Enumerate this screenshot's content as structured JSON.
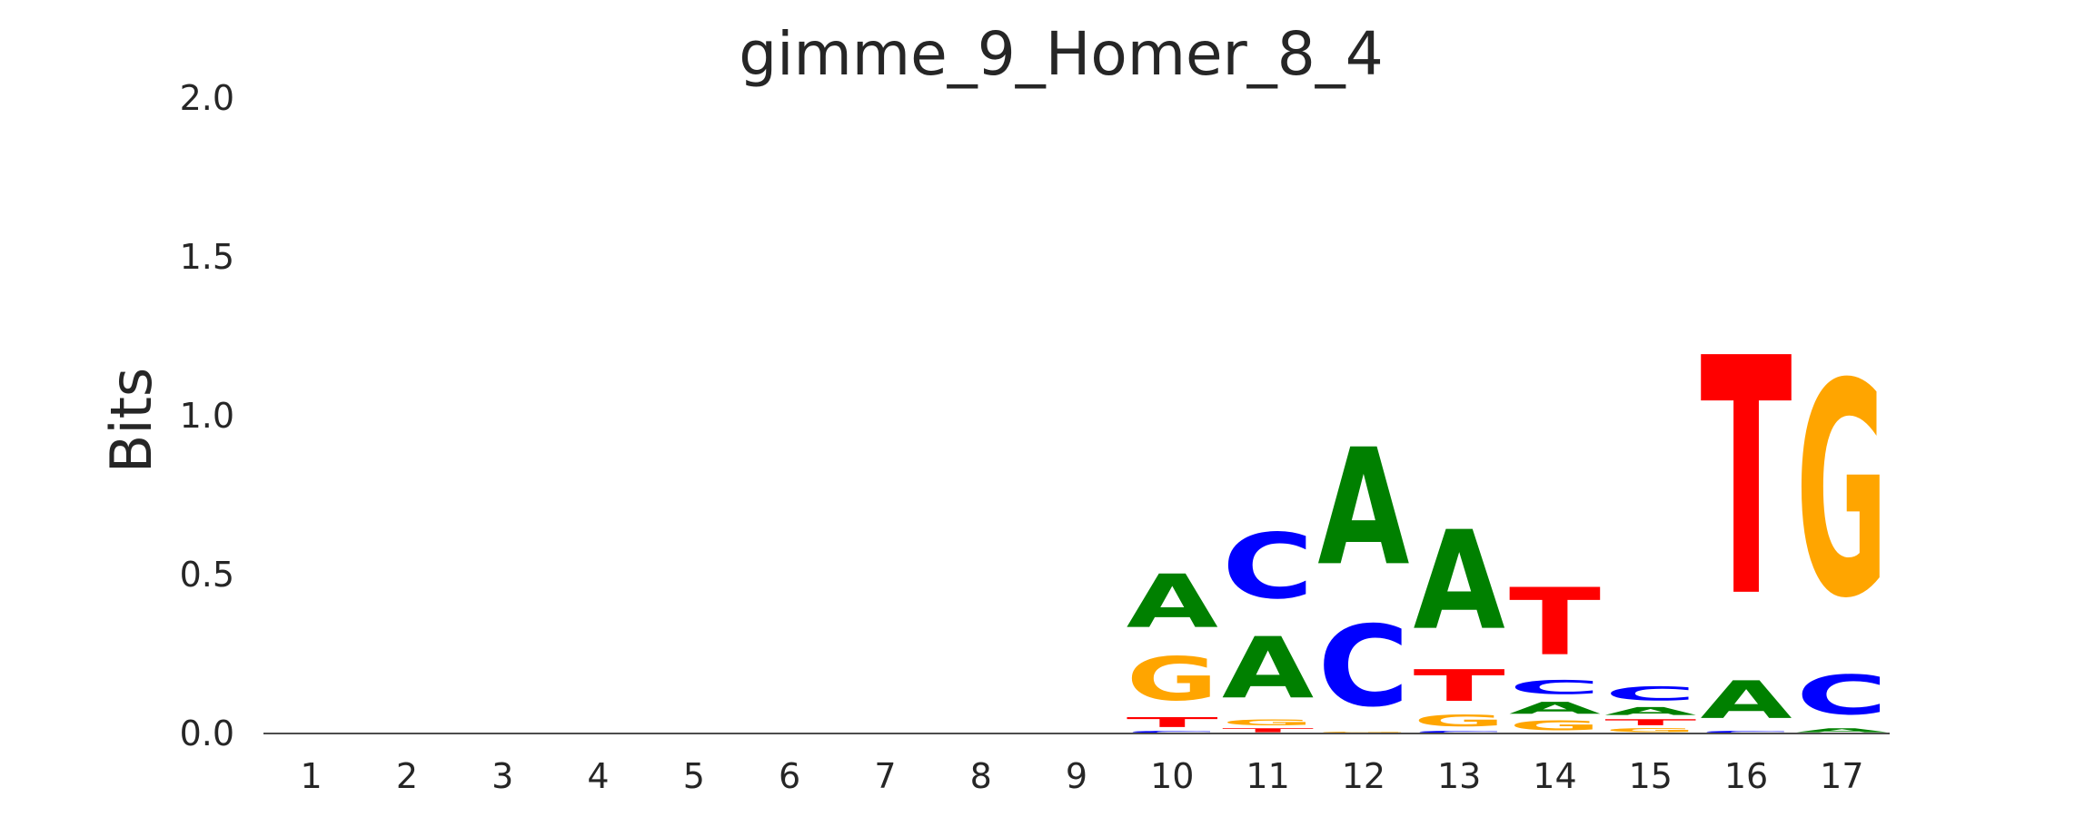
{
  "chart_data": {
    "type": "sequence-logo",
    "title": "gimme_9_Homer_8_4",
    "xlabel": "",
    "ylabel": "Bits",
    "ylim": [
      0,
      2
    ],
    "yticks": [
      "0.0",
      "0.5",
      "1.0",
      "1.5",
      "2.0"
    ],
    "ytick_values": [
      0,
      0.5,
      1,
      1.5,
      2
    ],
    "grid": false,
    "colors": {
      "A": "#008000",
      "C": "#0000ff",
      "G": "#ffa500",
      "T": "#ff0000"
    },
    "positions": [
      {
        "label": "1",
        "stack": []
      },
      {
        "label": "2",
        "stack": []
      },
      {
        "label": "3",
        "stack": []
      },
      {
        "label": "4",
        "stack": []
      },
      {
        "label": "5",
        "stack": []
      },
      {
        "label": "6",
        "stack": []
      },
      {
        "label": "7",
        "stack": []
      },
      {
        "label": "8",
        "stack": []
      },
      {
        "label": "9",
        "stack": []
      },
      {
        "label": "10",
        "stack": [
          {
            "base": "C",
            "bits": 0.01
          },
          {
            "base": "T",
            "bits": 0.05
          },
          {
            "base": "G",
            "bits": 0.22
          },
          {
            "base": "A",
            "bits": 0.27
          }
        ]
      },
      {
        "label": "11",
        "stack": [
          {
            "base": "T",
            "bits": 0.02
          },
          {
            "base": "G",
            "bits": 0.03
          },
          {
            "base": "A",
            "bits": 0.31
          },
          {
            "base": "C",
            "bits": 0.33
          }
        ]
      },
      {
        "label": "12",
        "stack": [
          {
            "base": "G",
            "bits": 0.005
          },
          {
            "base": "C",
            "bits": 0.41
          },
          {
            "base": "A",
            "bits": 0.59
          }
        ]
      },
      {
        "label": "13",
        "stack": [
          {
            "base": "C",
            "bits": 0.01
          },
          {
            "base": "G",
            "bits": 0.06
          },
          {
            "base": "T",
            "bits": 0.16
          },
          {
            "base": "A",
            "bits": 0.5
          }
        ]
      },
      {
        "label": "14",
        "stack": [
          {
            "base": "G",
            "bits": 0.05
          },
          {
            "base": "A",
            "bits": 0.06
          },
          {
            "base": "C",
            "bits": 0.07
          },
          {
            "base": "T",
            "bits": 0.34
          }
        ]
      },
      {
        "label": "15",
        "stack": [
          {
            "base": "G",
            "bits": 0.02
          },
          {
            "base": "T",
            "bits": 0.03
          },
          {
            "base": "A",
            "bits": 0.04
          },
          {
            "base": "C",
            "bits": 0.07
          }
        ]
      },
      {
        "label": "16",
        "stack": [
          {
            "base": "C",
            "bits": 0.01
          },
          {
            "base": "A",
            "bits": 0.19
          },
          {
            "base": "T",
            "bits": 1.2
          }
        ]
      },
      {
        "label": "17",
        "stack": [
          {
            "base": "A",
            "bits": 0.02
          },
          {
            "base": "C",
            "bits": 0.2
          },
          {
            "base": "G",
            "bits": 1.08
          }
        ]
      }
    ]
  }
}
